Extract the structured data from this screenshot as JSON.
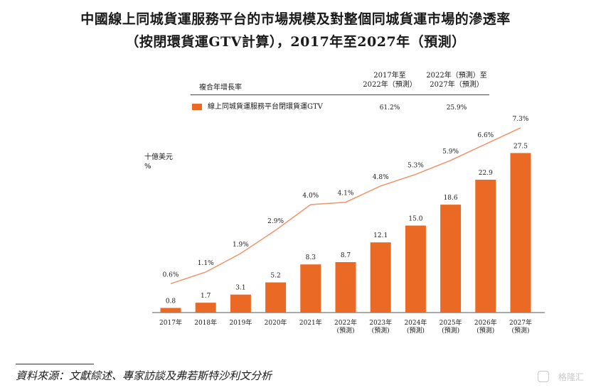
{
  "title_line1": "中國線上同城貨運服務平台的市場規模及對整個同城貨運市場的滲透率",
  "title_line2": "（按閉環貨運GTV計算），2017年至2027年（預測）",
  "legend_table": {
    "col_header_label": "複合年增長率",
    "period1_line1": "2017年至",
    "period1_line2": "2022年（預測）",
    "period2_line1": "2022年（預測）至",
    "period2_line2": "2027年（預測）",
    "series_label": "線上同城貨運服務平台閉環貨運GTV",
    "cagr1": "61.2%",
    "cagr2": "25.9%"
  },
  "unit_line1": "十億美元",
  "unit_line2": "%",
  "source_text": "資料來源：文獻綜述、專家訪談及弗若斯特沙利文分析",
  "watermark": "格隆汇",
  "colors": {
    "bar": "#ea6a25",
    "line": "#f0946a",
    "axis": "#555555"
  },
  "chart_data": {
    "type": "bar",
    "categories": [
      [
        "2017年"
      ],
      [
        "2018年"
      ],
      [
        "2019年"
      ],
      [
        "2020年"
      ],
      [
        "2021年"
      ],
      [
        "2022年",
        "(預測)"
      ],
      [
        "2023年",
        "(預測)"
      ],
      [
        "2024年",
        "(預測)"
      ],
      [
        "2025年",
        "(預測)"
      ],
      [
        "2026年",
        "(預測)"
      ],
      [
        "2027年",
        "(預測)"
      ]
    ],
    "series": [
      {
        "name": "線上同城貨運服務平台閉環貨運GTV",
        "values": [
          0.8,
          1.7,
          3.1,
          5.2,
          8.3,
          8.7,
          12.1,
          15.0,
          18.6,
          22.9,
          27.5
        ],
        "labels": [
          "0.8",
          "1.7",
          "3.1",
          "5.2",
          "8.3",
          "8.7",
          "12.1",
          "15.0",
          "18.6",
          "22.9",
          "27.5"
        ]
      },
      {
        "values": [
          0.6,
          1.1,
          1.9,
          2.9,
          4.0,
          4.1,
          4.8,
          5.3,
          5.9,
          6.6,
          7.3
        ],
        "labels": [
          "0.6%",
          "1.1%",
          "1.9%",
          "2.9%",
          "4.0%",
          "4.1%",
          "4.8%",
          "5.3%",
          "5.9%",
          "6.6%",
          "7.3%"
        ]
      }
    ],
    "ylim": [
      0,
      30
    ],
    "y2lim": [
      0,
      8
    ]
  }
}
